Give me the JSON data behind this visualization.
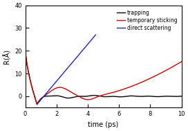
{
  "title": "",
  "xlabel": "time (ps)",
  "ylabel": "R(Å)",
  "xlim": [
    0,
    10
  ],
  "ylim": [
    -5,
    40
  ],
  "yticks": [
    0,
    10,
    20,
    30,
    40
  ],
  "xticks": [
    0,
    2,
    4,
    6,
    8,
    10
  ],
  "legend": [
    "trapping",
    "temporary sticking",
    "direct scattering"
  ],
  "legend_colors": [
    "black",
    "#cc0000",
    "#2222cc"
  ],
  "background_color": "#ffffff",
  "figsize": [
    2.72,
    1.89
  ],
  "dpi": 100
}
